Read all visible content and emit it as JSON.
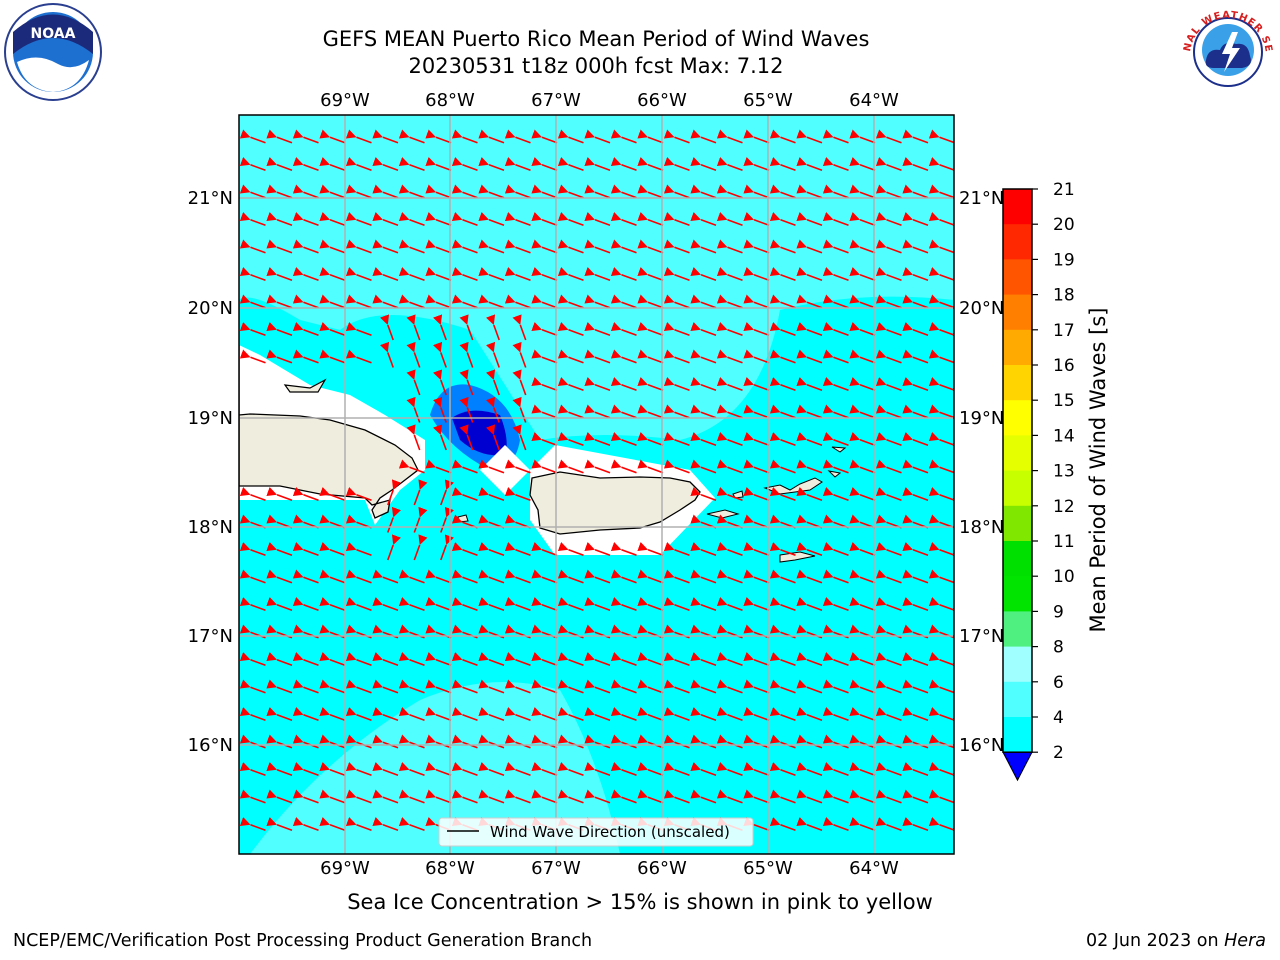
{
  "header": {
    "title_line1": "GEFS MEAN Puerto Rico Mean Period of Wind Waves",
    "title_line2": "20230531 t18z 000h fcst   Max: 7.12"
  },
  "map": {
    "lon_labels": [
      "69°W",
      "68°W",
      "67°W",
      "66°W",
      "65°W",
      "64°W"
    ],
    "lat_labels": [
      "21°N",
      "20°N",
      "19°N",
      "18°N",
      "17°N",
      "16°N"
    ],
    "legend_label": "Wind Wave Direction (unscaled)",
    "arrow_color": "#ff0000",
    "ocean_color": "#00ffff",
    "land_color": "#efedde"
  },
  "colorbar": {
    "label": "Mean Period of Wind Waves [s]",
    "ticks": [
      "21",
      "20",
      "19",
      "18",
      "17",
      "16",
      "15",
      "14",
      "13",
      "12",
      "11",
      "10",
      "9",
      "8",
      "6",
      "4",
      "2"
    ],
    "colors": [
      "#ff0000",
      "#ff2800",
      "#ff5500",
      "#ff7f00",
      "#ffa000",
      "#ffc000",
      "#ffe000",
      "#ffff00",
      "#e0ff00",
      "#c0ff00",
      "#80f000",
      "#00e000",
      "#00f000",
      "#40f080",
      "#a0ffff",
      "#50ffff",
      "#00ffff",
      "#0080ff",
      "#0000ff"
    ]
  },
  "note": "Sea Ice Concentration > 15% is shown in pink to yellow",
  "footer": {
    "left": "NCEP/EMC/Verification Post Processing Product Generation Branch",
    "date": "02 Jun 2023 on ",
    "machine": "Hera"
  },
  "logos": {
    "noaa_text": "NOAA",
    "nws_text": "NATIONAL WEATHER SERVICE"
  }
}
